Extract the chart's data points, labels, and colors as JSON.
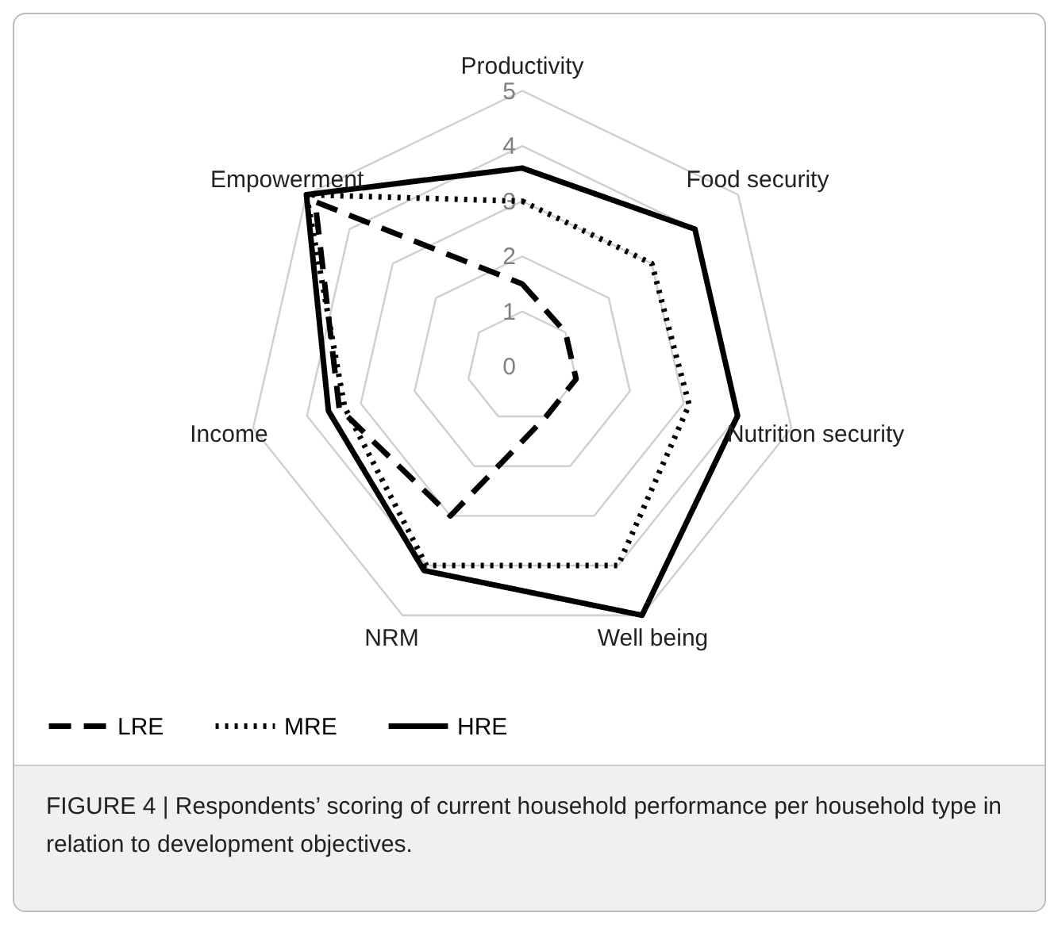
{
  "chart_data": {
    "type": "radar",
    "categories": [
      "Productivity",
      "Food security",
      "Nutrition security",
      "Well being",
      "NRM",
      "Income",
      "Empowerment"
    ],
    "ylim": [
      0,
      5
    ],
    "yticks": [
      0,
      1,
      2,
      3,
      4,
      5
    ],
    "grid": true,
    "legend": "bottom",
    "series": [
      {
        "name": "LRE",
        "color": "#000000",
        "line_style": "dashed",
        "values": [
          1.5,
          1.0,
          1.0,
          1.0,
          3.0,
          3.4,
          4.8
        ]
      },
      {
        "name": "MRE",
        "color": "#000000",
        "line_style": "dotted",
        "values": [
          3.0,
          3.0,
          3.1,
          4.0,
          4.0,
          3.3,
          5.0
        ]
      },
      {
        "name": "HRE",
        "color": "#000000",
        "line_style": "solid",
        "values": [
          3.6,
          4.0,
          4.0,
          5.0,
          4.1,
          3.6,
          5.0
        ]
      }
    ],
    "annotations": [
      "FIGURE 4 | Respondents’ scoring of current household performance per household type in relation to development objectives."
    ]
  }
}
